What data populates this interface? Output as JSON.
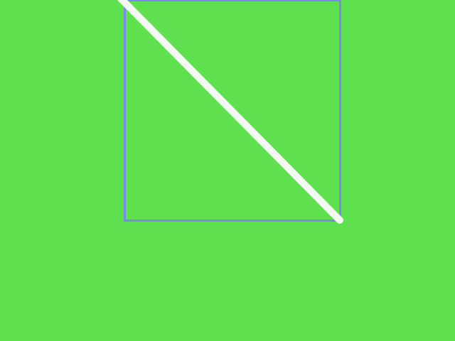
{
  "scene": {
    "background_color": "#5fe04f",
    "box_color": "#7f86f0",
    "line_color": "#f4f8f2"
  }
}
